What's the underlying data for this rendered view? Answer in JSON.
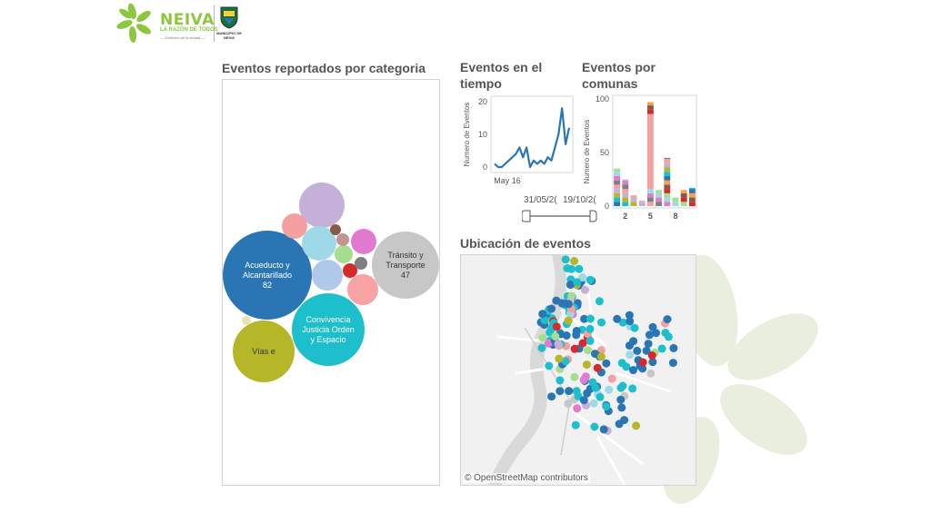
{
  "brand": {
    "name": "NEIVA",
    "tagline": "LA RAZÓN DE TODOS",
    "subline": "— Gobierno de la ciudad —",
    "crest_caption": "MUNICIPIO DE NEIVA",
    "logo_color": "#8dc63f"
  },
  "categories_sheet": {
    "title": "Eventos reportados por categoria",
    "bubbles": [
      {
        "id": "acueducto",
        "label": "Acueducto y\nAlcantarillado\n82",
        "color": "#2a76b5"
      },
      {
        "id": "convivencia",
        "label": "Convivencia\nJusticia Orden\ny Espacio",
        "color": "#1ebfcc"
      },
      {
        "id": "transito",
        "label": "Tránsito y\nTransporte\n47",
        "color": "#c7c7c7"
      },
      {
        "id": "vias",
        "label": "Vías e",
        "color": "#b6b629"
      },
      {
        "id": "lavender",
        "label": "",
        "color": "#c5b0d8"
      },
      {
        "id": "lightblue",
        "label": "",
        "color": "#9fd9e8"
      },
      {
        "id": "pink",
        "label": "",
        "color": "#f4a0a0"
      },
      {
        "id": "salmon",
        "label": "",
        "color": "#f7a3a3"
      },
      {
        "id": "periwinkle",
        "label": "",
        "color": "#b0c8ea"
      },
      {
        "id": "orchid",
        "label": "",
        "color": "#e17ad0"
      },
      {
        "id": "lightgreen",
        "label": "",
        "color": "#a5de8f"
      },
      {
        "id": "red",
        "label": "",
        "color": "#d62a2a"
      },
      {
        "id": "rosybrown",
        "label": "",
        "color": "#c49494"
      },
      {
        "id": "brown",
        "label": "",
        "color": "#8c564b"
      },
      {
        "id": "gray",
        "label": "",
        "color": "#7f7f7f"
      },
      {
        "id": "beige",
        "label": "",
        "color": "#e6e3b3"
      }
    ]
  },
  "time_sheet": {
    "title": "Eventos en el tiempo",
    "chart_data": {
      "type": "line",
      "ylabel": "Numero de Eventos",
      "yticks": [
        0,
        10,
        20
      ],
      "xtick_label": "May 16",
      "ylim": [
        0,
        20
      ],
      "values": [
        1,
        0,
        0,
        1,
        2,
        3,
        4,
        6,
        3,
        6,
        0,
        2,
        1,
        2,
        1,
        3,
        2,
        6,
        10,
        18,
        7,
        12
      ],
      "color": "#2a76b5"
    },
    "range_start": "31/05/2(",
    "range_end": "19/10/2("
  },
  "comunas_sheet": {
    "title": "Eventos por comunas",
    "chart_data": {
      "type": "bar",
      "ylabel": "Numero de Eventos",
      "yticks": [
        0,
        50,
        100
      ],
      "ylim": [
        0,
        100
      ],
      "xticks": [
        "2",
        "5",
        "8"
      ],
      "categories": [
        "1",
        "2",
        "3",
        "4",
        "5",
        "6",
        "7",
        "8",
        "9",
        "10"
      ],
      "values": [
        35,
        25,
        10,
        5,
        97,
        15,
        45,
        8,
        15,
        17
      ],
      "stack_colors": [
        "#2a76b5",
        "#1ebfcc",
        "#b6b629",
        "#c5b0d8",
        "#f4a0a0",
        "#7f7f7f",
        "#e17ad0",
        "#9fd9e8",
        "#a5de8f",
        "#d62a2a",
        "#8c564b",
        "#ff9f40"
      ]
    }
  },
  "map_sheet": {
    "title": "Ubicación de eventos",
    "attribution": "© OpenStreetMap contributors",
    "point_colors": [
      "#2a76b5",
      "#1ebfcc",
      "#b6b629",
      "#c5b0d8",
      "#c7c7c7",
      "#f4a0a0",
      "#9fd9e8",
      "#d62a2a",
      "#e17ad0",
      "#a5de8f"
    ]
  }
}
